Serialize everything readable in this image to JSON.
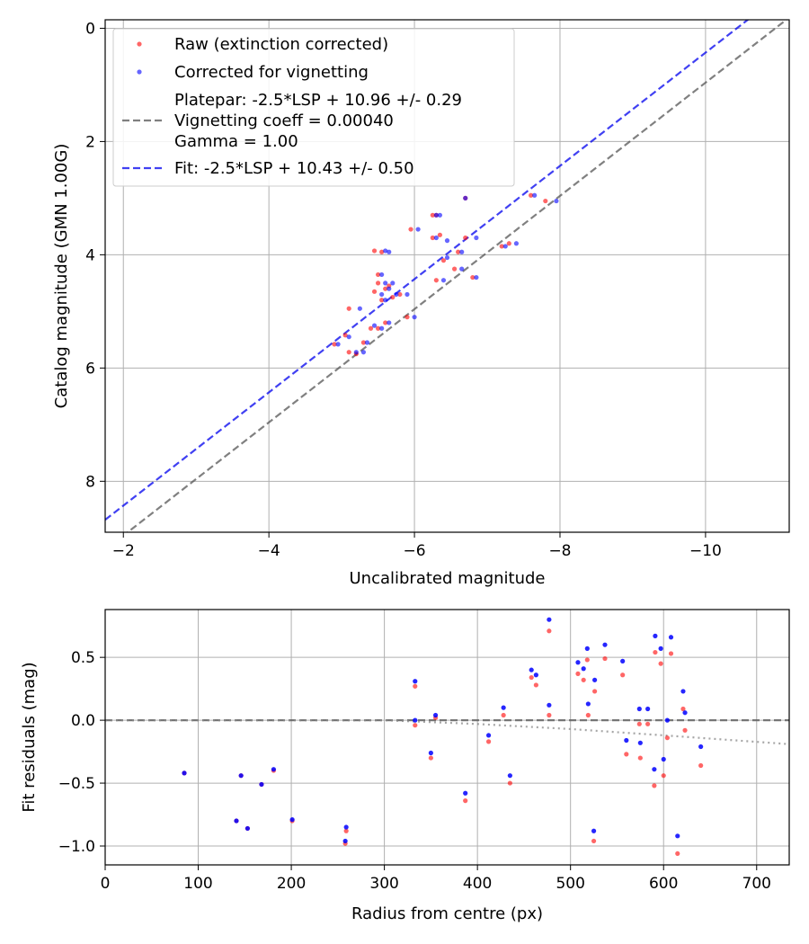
{
  "chart_data": [
    {
      "type": "scatter",
      "xlabel": "Uncalibrated magnitude",
      "ylabel": "Catalog magnitude (GMN 1.00G)",
      "xlim": [
        -1.75,
        -11.15
      ],
      "ylim": [
        8.9,
        -0.15
      ],
      "x_ticks": [
        -2,
        -4,
        -6,
        -8,
        -10
      ],
      "x_tick_labels": [
        "−2",
        "−4",
        "−6",
        "−8",
        "−10"
      ],
      "y_ticks": [
        0,
        2,
        4,
        6,
        8
      ],
      "y_tick_labels": [
        "0",
        "2",
        "4",
        "6",
        "8"
      ],
      "grid": true,
      "legend_location": "top-left",
      "legend": [
        {
          "label": "Raw (extinction corrected)",
          "kind": "marker",
          "color": "#ff0000"
        },
        {
          "label": "Corrected for vignetting",
          "kind": "marker",
          "color": "#0000ff"
        },
        {
          "label": "Platepar: -2.5*LSP + 10.96 +/- 0.29",
          "label2": "Vignetting coeff = 0.00040",
          "label3": "Gamma = 1.00",
          "kind": "dashed",
          "color": "#555555"
        },
        {
          "label": "Fit: -2.5*LSP + 10.43 +/- 0.50",
          "kind": "dashed",
          "color": "#0000ee"
        }
      ],
      "lines": [
        {
          "name": "Platepar",
          "color": "#555555",
          "x": [
            -1.75,
            -11.15
          ],
          "y": [
            9.21,
            -0.19
          ]
        },
        {
          "name": "Fit",
          "color": "#0000ee",
          "x": [
            -1.75,
            -11.15
          ],
          "y": [
            8.68,
            -0.72
          ]
        }
      ],
      "series": [
        {
          "name": "Raw (extinction corrected)",
          "color": "#ff0000",
          "points": [
            [
              -4.9,
              5.58
            ],
            [
              -5.05,
              5.42
            ],
            [
              -5.1,
              4.95
            ],
            [
              -5.1,
              5.72
            ],
            [
              -5.2,
              5.75
            ],
            [
              -5.3,
              5.55
            ],
            [
              -5.4,
              5.3
            ],
            [
              -5.5,
              5.3
            ],
            [
              -5.45,
              4.65
            ],
            [
              -5.5,
              4.35
            ],
            [
              -5.45,
              3.93
            ],
            [
              -5.55,
              3.95
            ],
            [
              -5.5,
              4.5
            ],
            [
              -5.55,
              4.8
            ],
            [
              -5.6,
              4.6
            ],
            [
              -5.65,
              4.55
            ],
            [
              -5.6,
              5.2
            ],
            [
              -5.7,
              4.75
            ],
            [
              -5.8,
              4.7
            ],
            [
              -5.9,
              5.1
            ],
            [
              -5.95,
              3.55
            ],
            [
              -6.25,
              3.7
            ],
            [
              -6.25,
              3.3
            ],
            [
              -6.3,
              3.3
            ],
            [
              -6.35,
              3.65
            ],
            [
              -6.4,
              4.1
            ],
            [
              -6.3,
              4.45
            ],
            [
              -6.55,
              4.25
            ],
            [
              -6.6,
              3.95
            ],
            [
              -6.7,
              3.0
            ],
            [
              -6.7,
              3.7
            ],
            [
              -6.8,
              4.4
            ],
            [
              -7.2,
              3.85
            ],
            [
              -7.3,
              3.8
            ],
            [
              -7.6,
              2.95
            ],
            [
              -7.8,
              3.05
            ]
          ]
        },
        {
          "name": "Corrected for vignetting",
          "color": "#0000ff",
          "points": [
            [
              -4.95,
              5.58
            ],
            [
              -5.1,
              5.45
            ],
            [
              -5.25,
              4.95
            ],
            [
              -5.2,
              5.72
            ],
            [
              -5.3,
              5.72
            ],
            [
              -5.35,
              5.55
            ],
            [
              -5.45,
              5.25
            ],
            [
              -5.55,
              5.3
            ],
            [
              -5.55,
              4.7
            ],
            [
              -5.55,
              4.35
            ],
            [
              -5.6,
              3.93
            ],
            [
              -5.65,
              3.95
            ],
            [
              -5.6,
              4.5
            ],
            [
              -5.6,
              4.8
            ],
            [
              -5.65,
              4.6
            ],
            [
              -5.7,
              4.5
            ],
            [
              -5.65,
              5.2
            ],
            [
              -5.75,
              4.7
            ],
            [
              -5.9,
              4.7
            ],
            [
              -6.0,
              5.1
            ],
            [
              -6.05,
              3.55
            ],
            [
              -6.3,
              3.7
            ],
            [
              -6.3,
              3.3
            ],
            [
              -6.35,
              3.3
            ],
            [
              -6.45,
              3.75
            ],
            [
              -6.45,
              4.05
            ],
            [
              -6.4,
              4.45
            ],
            [
              -6.65,
              4.25
            ],
            [
              -6.65,
              3.95
            ],
            [
              -6.7,
              3.0
            ],
            [
              -6.85,
              3.7
            ],
            [
              -6.85,
              4.4
            ],
            [
              -7.25,
              3.85
            ],
            [
              -7.4,
              3.8
            ],
            [
              -7.65,
              2.95
            ],
            [
              -7.95,
              3.05
            ]
          ]
        }
      ]
    },
    {
      "type": "scatter",
      "xlabel": "Radius from centre (px)",
      "ylabel": "Fit residuals (mag)",
      "xlim": [
        0,
        735
      ],
      "ylim": [
        -1.15,
        0.88
      ],
      "x_ticks": [
        0,
        100,
        200,
        300,
        400,
        500,
        600,
        700
      ],
      "x_tick_labels": [
        "0",
        "100",
        "200",
        "300",
        "400",
        "500",
        "600",
        "700"
      ],
      "y_ticks": [
        0.5,
        0.0,
        -0.5,
        -1.0
      ],
      "y_tick_labels": [
        "0.5",
        "0.0",
        "−0.5",
        "−1.0"
      ],
      "grid": true,
      "lines": [
        {
          "name": "Zero line",
          "style": "dashed",
          "color": "#555555",
          "x": [
            0,
            735
          ],
          "y": [
            0,
            0
          ]
        },
        {
          "name": "Vignetting curve",
          "style": "dotted",
          "color": "#888888",
          "x": [
            0,
            300,
            400,
            500,
            600,
            735
          ],
          "y": [
            0,
            0,
            -0.03,
            -0.07,
            -0.12,
            -0.19
          ]
        }
      ],
      "series": [
        {
          "name": "Raw (extinction corrected)",
          "color": "#ff0000",
          "points": [
            [
              85,
              -0.42
            ],
            [
              141,
              -0.8
            ],
            [
              146,
              -0.44
            ],
            [
              153,
              -0.86
            ],
            [
              168,
              -0.51
            ],
            [
              181,
              -0.4
            ],
            [
              201,
              -0.8
            ],
            [
              258,
              -0.98
            ],
            [
              259,
              -0.88
            ],
            [
              333,
              0.27
            ],
            [
              333,
              -0.04
            ],
            [
              350,
              -0.3
            ],
            [
              355,
              0.02
            ],
            [
              387,
              -0.64
            ],
            [
              412,
              -0.17
            ],
            [
              428,
              0.04
            ],
            [
              435,
              -0.5
            ],
            [
              458,
              0.34
            ],
            [
              463,
              0.28
            ],
            [
              477,
              0.71
            ],
            [
              477,
              0.04
            ],
            [
              508,
              0.37
            ],
            [
              514,
              0.32
            ],
            [
              518,
              0.48
            ],
            [
              519,
              0.04
            ],
            [
              525,
              -0.96
            ],
            [
              526,
              0.23
            ],
            [
              537,
              0.49
            ],
            [
              556,
              0.36
            ],
            [
              560,
              -0.27
            ],
            [
              574,
              -0.03
            ],
            [
              575,
              -0.3
            ],
            [
              583,
              -0.03
            ],
            [
              591,
              0.54
            ],
            [
              590,
              -0.52
            ],
            [
              597,
              0.45
            ],
            [
              600,
              -0.44
            ],
            [
              604,
              -0.14
            ],
            [
              608,
              0.53
            ],
            [
              615,
              -1.06
            ],
            [
              621,
              0.09
            ],
            [
              623,
              -0.08
            ],
            [
              640,
              -0.36
            ]
          ]
        },
        {
          "name": "Corrected for vignetting",
          "color": "#0000ff",
          "points": [
            [
              85,
              -0.42
            ],
            [
              141,
              -0.8
            ],
            [
              146,
              -0.44
            ],
            [
              153,
              -0.86
            ],
            [
              168,
              -0.51
            ],
            [
              181,
              -0.39
            ],
            [
              201,
              -0.79
            ],
            [
              258,
              -0.96
            ],
            [
              259,
              -0.85
            ],
            [
              333,
              0.31
            ],
            [
              333,
              0.0
            ],
            [
              350,
              -0.26
            ],
            [
              355,
              0.04
            ],
            [
              387,
              -0.58
            ],
            [
              412,
              -0.12
            ],
            [
              428,
              0.1
            ],
            [
              435,
              -0.44
            ],
            [
              458,
              0.4
            ],
            [
              463,
              0.36
            ],
            [
              477,
              0.8
            ],
            [
              477,
              0.12
            ],
            [
              508,
              0.46
            ],
            [
              514,
              0.41
            ],
            [
              518,
              0.57
            ],
            [
              519,
              0.13
            ],
            [
              525,
              -0.88
            ],
            [
              526,
              0.32
            ],
            [
              537,
              0.6
            ],
            [
              556,
              0.47
            ],
            [
              560,
              -0.16
            ],
            [
              574,
              0.09
            ],
            [
              575,
              -0.18
            ],
            [
              583,
              0.09
            ],
            [
              591,
              0.67
            ],
            [
              590,
              -0.39
            ],
            [
              597,
              0.57
            ],
            [
              600,
              -0.31
            ],
            [
              604,
              0.0
            ],
            [
              608,
              0.66
            ],
            [
              615,
              -0.92
            ],
            [
              621,
              0.23
            ],
            [
              623,
              0.06
            ],
            [
              640,
              -0.21
            ]
          ]
        }
      ]
    }
  ]
}
